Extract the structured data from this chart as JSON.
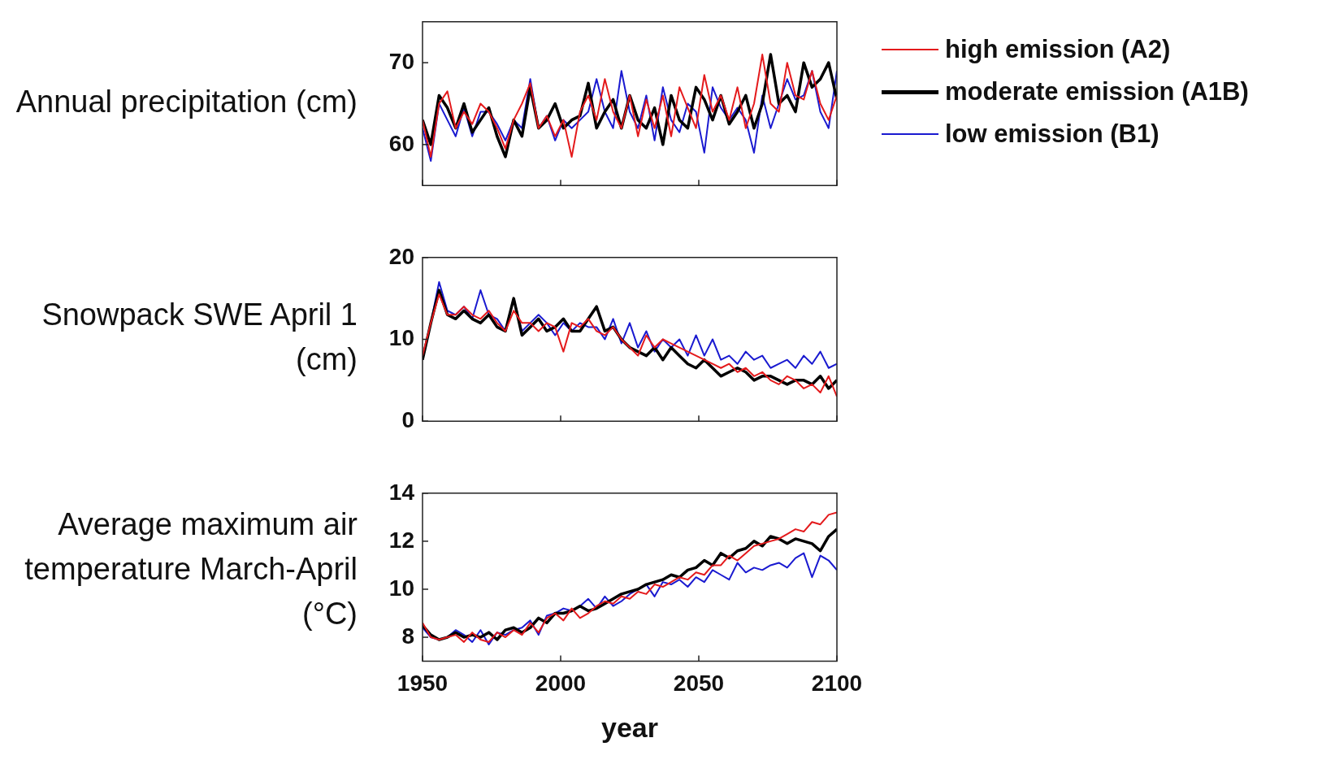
{
  "chart_data": [
    {
      "type": "line",
      "ylabel": "Annual precipitation (cm)",
      "xlim": [
        1950,
        2100
      ],
      "xticks": [
        1950,
        2000,
        2050,
        2100
      ],
      "ylim": [
        55,
        75
      ],
      "yticks": [
        60,
        70
      ],
      "grid": false,
      "legend": "right",
      "tick_labels": "y",
      "marker": "none",
      "line_style": "solid",
      "x": [
        1950,
        1953,
        1956,
        1959,
        1962,
        1965,
        1968,
        1971,
        1974,
        1977,
        1980,
        1983,
        1986,
        1989,
        1992,
        1995,
        1998,
        2001,
        2004,
        2007,
        2010,
        2013,
        2016,
        2019,
        2022,
        2025,
        2028,
        2031,
        2034,
        2037,
        2040,
        2043,
        2046,
        2049,
        2052,
        2055,
        2058,
        2061,
        2064,
        2067,
        2070,
        2073,
        2076,
        2079,
        2082,
        2085,
        2088,
        2091,
        2094,
        2097,
        2100
      ],
      "series": [
        {
          "name": "high emission (A2)",
          "color": "#e41a1c",
          "values": [
            63,
            58.5,
            65,
            66.5,
            62,
            64,
            62.5,
            65,
            64,
            62,
            59.5,
            63,
            65,
            67.5,
            62,
            63.5,
            61,
            63,
            58.5,
            64,
            66,
            63,
            68,
            64,
            62,
            66,
            61,
            65.5,
            62,
            66,
            61,
            67,
            64.5,
            62,
            68.5,
            64,
            66,
            63,
            67,
            62,
            65,
            71,
            65,
            64,
            70,
            66,
            65.5,
            69,
            65,
            63,
            66
          ]
        },
        {
          "name": "moderate emission (A1B)",
          "color": "#000000",
          "values": [
            63,
            60,
            66,
            64.5,
            62,
            65,
            61.5,
            63,
            64.5,
            61,
            58.5,
            63,
            61,
            67,
            62,
            63,
            65,
            62,
            63,
            63.5,
            67.5,
            62,
            64,
            65.5,
            62,
            66,
            63,
            62,
            64.5,
            60,
            66,
            63,
            62,
            67,
            65.5,
            63,
            66,
            62.5,
            64,
            66,
            62,
            65,
            71,
            65,
            66,
            64,
            70,
            67,
            68,
            70,
            65.5
          ]
        },
        {
          "name": "low emission (B1)",
          "color": "#1a1ad0",
          "values": [
            62,
            58,
            65,
            63,
            61,
            64.5,
            61,
            64,
            64,
            62.5,
            60.5,
            63,
            62,
            68,
            62,
            63.5,
            60.5,
            63,
            62,
            63,
            64,
            68,
            64,
            62,
            69,
            64,
            62,
            66,
            60.5,
            67,
            63,
            61.5,
            65,
            64,
            59,
            67,
            64.5,
            63,
            64.5,
            63,
            59,
            66,
            62,
            65,
            68,
            65.5,
            66,
            69,
            64,
            62,
            69
          ]
        }
      ]
    },
    {
      "type": "line",
      "ylabel": "Snowpack SWE April 1 (cm)",
      "xlim": [
        1950,
        2100
      ],
      "xticks": [
        1950,
        2000,
        2050,
        2100
      ],
      "ylim": [
        0,
        20
      ],
      "yticks": [
        0,
        10,
        20
      ],
      "grid": false,
      "tick_labels": "y",
      "marker": "none",
      "line_style": "solid",
      "x": [
        1950,
        1953,
        1956,
        1959,
        1962,
        1965,
        1968,
        1971,
        1974,
        1977,
        1980,
        1983,
        1986,
        1989,
        1992,
        1995,
        1998,
        2001,
        2004,
        2007,
        2010,
        2013,
        2016,
        2019,
        2022,
        2025,
        2028,
        2031,
        2034,
        2037,
        2040,
        2043,
        2046,
        2049,
        2052,
        2055,
        2058,
        2061,
        2064,
        2067,
        2070,
        2073,
        2076,
        2079,
        2082,
        2085,
        2088,
        2091,
        2094,
        2097,
        2100
      ],
      "series": [
        {
          "color": "#e41a1c",
          "values": [
            8,
            12,
            15.5,
            13,
            13,
            14,
            13,
            12.5,
            13.5,
            12,
            11,
            13.5,
            12,
            12,
            11,
            12,
            11.5,
            8.5,
            12,
            11.5,
            12.5,
            11,
            10.5,
            11.5,
            10,
            9,
            8,
            10.5,
            9,
            10,
            9.5,
            9,
            8.5,
            8,
            7.5,
            7,
            6.5,
            7,
            6,
            6.5,
            5.5,
            6,
            5,
            4.5,
            5.5,
            5,
            4,
            4.5,
            3.5,
            5.5,
            3
          ]
        },
        {
          "color": "#000000",
          "values": [
            7.5,
            12,
            16,
            13,
            12.5,
            13.5,
            12.5,
            12,
            13,
            11.5,
            11,
            15,
            10.5,
            11.5,
            12.5,
            11,
            11.5,
            12.5,
            11,
            11,
            12.5,
            14,
            11,
            11.5,
            10,
            9,
            8.5,
            8,
            9,
            7.5,
            9,
            8,
            7,
            6.5,
            7.5,
            6.5,
            5.5,
            6,
            6.5,
            6,
            5,
            5.5,
            5.5,
            5,
            4.5,
            5,
            5,
            4.5,
            5.5,
            4,
            5
          ]
        },
        {
          "color": "#1a1ad0",
          "values": [
            7.5,
            12,
            17,
            13.5,
            13,
            14,
            12.5,
            16,
            13,
            12.5,
            11,
            15,
            11,
            12,
            13,
            12,
            10.5,
            12,
            11,
            12,
            11.5,
            11.5,
            10,
            12.5,
            9.5,
            12,
            9,
            11,
            8.5,
            10,
            9,
            10,
            8,
            10.5,
            8,
            10,
            7.5,
            8,
            7,
            8.5,
            7.5,
            8,
            6.5,
            7,
            7.5,
            6.5,
            8,
            7,
            8.5,
            6.5,
            7
          ]
        }
      ]
    },
    {
      "type": "line",
      "ylabel": "Average maximum air temperature March-April (°C)",
      "xlabel": "year",
      "xlim": [
        1950,
        2100
      ],
      "xticks": [
        1950,
        2000,
        2050,
        2100
      ],
      "ylim": [
        7,
        14
      ],
      "yticks": [
        8,
        10,
        12,
        14
      ],
      "grid": false,
      "marker": "none",
      "line_style": "solid",
      "x": [
        1950,
        1953,
        1956,
        1959,
        1962,
        1965,
        1968,
        1971,
        1974,
        1977,
        1980,
        1983,
        1986,
        1989,
        1992,
        1995,
        1998,
        2001,
        2004,
        2007,
        2010,
        2013,
        2016,
        2019,
        2022,
        2025,
        2028,
        2031,
        2034,
        2037,
        2040,
        2043,
        2046,
        2049,
        2052,
        2055,
        2058,
        2061,
        2064,
        2067,
        2070,
        2073,
        2076,
        2079,
        2082,
        2085,
        2088,
        2091,
        2094,
        2097,
        2100
      ],
      "series": [
        {
          "color": "#e41a1c",
          "values": [
            8.6,
            8,
            7.9,
            8,
            8.1,
            7.8,
            8.2,
            7.9,
            7.8,
            8.2,
            8,
            8.3,
            8.1,
            8.6,
            8.2,
            8.8,
            9,
            8.7,
            9.2,
            8.8,
            9,
            9.3,
            9.5,
            9.4,
            9.7,
            9.6,
            9.9,
            9.8,
            10.2,
            10.1,
            10.3,
            10.5,
            10.4,
            10.7,
            10.6,
            11,
            11,
            11.4,
            11.2,
            11.5,
            11.8,
            11.9,
            12,
            12.1,
            12.3,
            12.5,
            12.4,
            12.8,
            12.7,
            13.1,
            13.2
          ]
        },
        {
          "color": "#000000",
          "values": [
            8.5,
            8.1,
            7.9,
            8,
            8.2,
            8,
            8.1,
            8,
            8.2,
            7.9,
            8.3,
            8.4,
            8.2,
            8.4,
            8.8,
            8.6,
            9,
            9,
            9.1,
            9.3,
            9.1,
            9.2,
            9.4,
            9.6,
            9.8,
            9.9,
            10,
            10.2,
            10.3,
            10.4,
            10.6,
            10.5,
            10.8,
            10.9,
            11.2,
            11,
            11.5,
            11.3,
            11.6,
            11.7,
            12,
            11.8,
            12.2,
            12.1,
            11.9,
            12.1,
            12,
            11.9,
            11.6,
            12.2,
            12.5
          ]
        },
        {
          "color": "#1a1ad0",
          "values": [
            8.4,
            8,
            7.9,
            8,
            8.3,
            8.1,
            7.8,
            8.3,
            7.7,
            8.2,
            8.1,
            8.3,
            8.4,
            8.7,
            8.1,
            8.9,
            9,
            9.2,
            9.1,
            9.3,
            9.6,
            9.2,
            9.7,
            9.3,
            9.5,
            9.8,
            10,
            10.2,
            9.7,
            10.3,
            10.2,
            10.4,
            10.1,
            10.5,
            10.3,
            10.8,
            10.6,
            10.4,
            11.1,
            10.7,
            10.9,
            10.8,
            11,
            11.1,
            10.9,
            11.3,
            11.5,
            10.5,
            11.4,
            11.2,
            10.8
          ]
        }
      ]
    }
  ]
}
